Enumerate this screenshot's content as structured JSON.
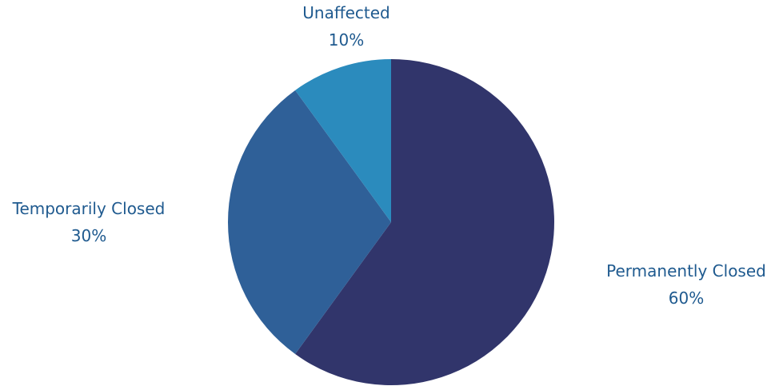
{
  "chart_data": {
    "type": "pie",
    "slices": [
      {
        "label": "Permanently Closed",
        "value": 60,
        "value_label": "60%",
        "color": "#31356b"
      },
      {
        "label": "Temporarily Closed",
        "value": 30,
        "value_label": "30%",
        "color": "#2f6098"
      },
      {
        "label": "Unaffected",
        "value": 10,
        "value_label": "10%",
        "color": "#2b8bbd"
      }
    ],
    "start_angle_deg": 0,
    "direction": "clockwise",
    "legend": "none",
    "label_color": "#1f5a8f"
  }
}
